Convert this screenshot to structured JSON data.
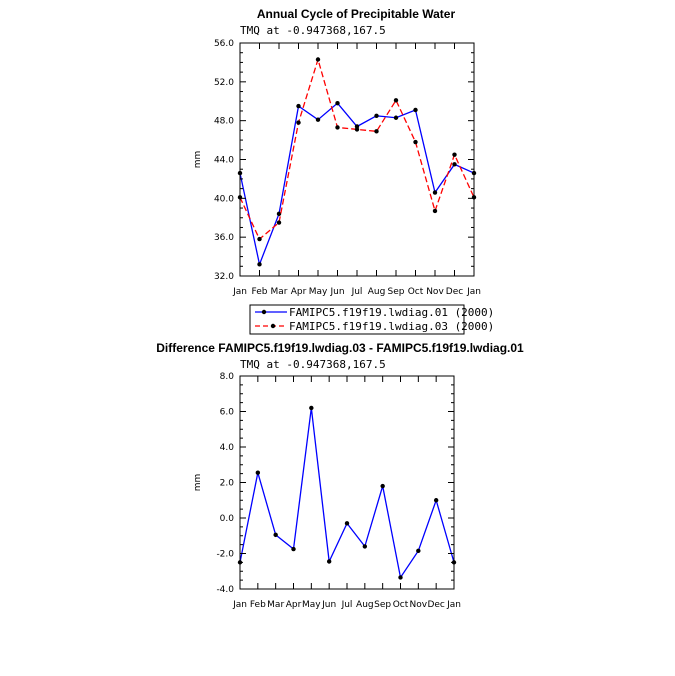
{
  "chart_data": [
    {
      "type": "line",
      "title": "Annual Cycle of Precipitable Water",
      "subtitle": "TMQ at -0.947368,167.5",
      "xlabel": "",
      "ylabel": "mm",
      "ylim": [
        32.0,
        56.0
      ],
      "yticks": [
        "32.0",
        "36.0",
        "40.0",
        "44.0",
        "48.0",
        "52.0",
        "56.0"
      ],
      "categories": [
        "Jan",
        "Feb",
        "Mar",
        "Apr",
        "May",
        "Jun",
        "Jul",
        "Aug",
        "Sep",
        "Oct",
        "Nov",
        "Dec",
        "Jan"
      ],
      "series": [
        {
          "name": "FAMIPC5.f19f19.lwdiag.01 (2000)",
          "color": "#0000ff",
          "dash": "solid",
          "values": [
            42.6,
            33.2,
            38.4,
            49.5,
            48.1,
            49.8,
            47.4,
            48.5,
            48.3,
            49.1,
            40.6,
            43.5,
            42.6
          ]
        },
        {
          "name": "FAMIPC5.f19f19.lwdiag.03 (2000)",
          "color": "#ff0000",
          "dash": "dashed",
          "values": [
            40.1,
            35.8,
            37.5,
            47.8,
            54.3,
            47.3,
            47.1,
            46.9,
            50.1,
            45.8,
            38.7,
            44.5,
            40.1
          ]
        }
      ],
      "legend": "bottom"
    },
    {
      "type": "line",
      "title": "Difference FAMIPC5.f19f19.lwdiag.03 - FAMIPC5.f19f19.lwdiag.01",
      "subtitle": "TMQ at -0.947368,167.5",
      "xlabel": "",
      "ylabel": "mm",
      "ylim": [
        -4.0,
        8.0
      ],
      "yticks": [
        "-4.0",
        "-2.0",
        "0.0",
        "2.0",
        "4.0",
        "6.0",
        "8.0"
      ],
      "categories": [
        "Jan",
        "Feb",
        "Mar",
        "Apr",
        "May",
        "Jun",
        "Jul",
        "Aug",
        "Sep",
        "Oct",
        "Nov",
        "Dec",
        "Jan"
      ],
      "series": [
        {
          "name": "",
          "color": "#0000ff",
          "dash": "solid",
          "values": [
            -2.5,
            2.55,
            -0.95,
            -1.75,
            6.2,
            -2.45,
            -0.3,
            -1.6,
            1.8,
            -3.35,
            -1.85,
            1.0,
            -2.5
          ]
        }
      ]
    }
  ]
}
